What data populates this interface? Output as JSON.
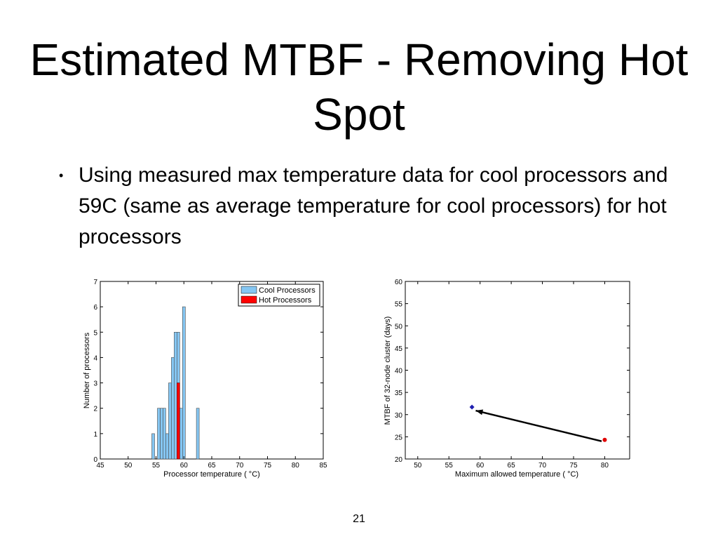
{
  "slide": {
    "title": "Estimated MTBF - Removing Hot Spot",
    "bullet": "Using measured max temperature data for cool processors and 59C (same as average temperature for cool processors) for hot processors",
    "page_number": "21"
  },
  "colors": {
    "cool": "#85c6f2",
    "hot": "#ff0000",
    "cool_point": "#1f1fb0",
    "hot_point": "#e00000"
  },
  "chart_data": [
    {
      "type": "bar",
      "title": "",
      "xlabel": "Processor temperature ( °C)",
      "ylabel": "Number of processors",
      "xlim": [
        45,
        85
      ],
      "ylim": [
        0,
        7
      ],
      "xticks": [
        "45",
        "50",
        "55",
        "60",
        "65",
        "70",
        "75",
        "80",
        "85"
      ],
      "yticks": [
        "0",
        "1",
        "2",
        "3",
        "4",
        "5",
        "6",
        "7"
      ],
      "bar_width": 0.5,
      "legend": {
        "position": "top-right",
        "entries": [
          {
            "label": "Cool Processors",
            "color": "#85c6f2"
          },
          {
            "label": "Hot Processors",
            "color": "#ff0000"
          }
        ]
      },
      "series": [
        {
          "name": "Cool Processors",
          "color": "#85c6f2",
          "x": [
            54.5,
            55.5,
            56.0,
            56.5,
            57.0,
            57.5,
            58.0,
            58.5,
            59.0,
            59.5,
            60.0,
            62.5
          ],
          "values": [
            1,
            2,
            2,
            2,
            1,
            3,
            4,
            5,
            5,
            2,
            6,
            2
          ]
        },
        {
          "name": "Hot Processors",
          "color": "#ff0000",
          "x": [
            59.0
          ],
          "values": [
            3
          ]
        }
      ]
    },
    {
      "type": "scatter",
      "title": "",
      "xlabel": "Maximum allowed temperature ( °C)",
      "ylabel": "MTBF of 32-node cluster (days)",
      "xlim": [
        48,
        84
      ],
      "ylim": [
        20,
        60
      ],
      "xticks": [
        "50",
        "55",
        "60",
        "65",
        "70",
        "75",
        "80"
      ],
      "yticks": [
        "20",
        "25",
        "30",
        "35",
        "40",
        "45",
        "50",
        "55",
        "60"
      ],
      "points": [
        {
          "name": "cool",
          "x": 58.7,
          "y": 31.7,
          "color": "#1f1fb0"
        },
        {
          "name": "hot",
          "x": 80.0,
          "y": 24.3,
          "color": "#e00000"
        }
      ],
      "arrow": {
        "from": [
          79.5,
          24.0
        ],
        "to": [
          59.3,
          30.9
        ]
      }
    }
  ]
}
